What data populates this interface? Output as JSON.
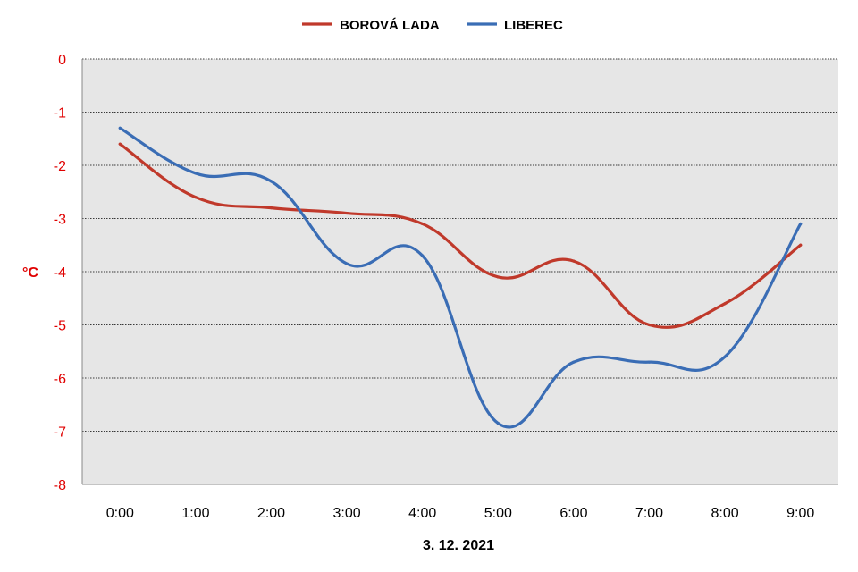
{
  "chart_data": {
    "type": "line",
    "title": "",
    "xlabel": "3. 12. 2021",
    "ylabel": "°C",
    "categories": [
      "0:00",
      "1:00",
      "2:00",
      "3:00",
      "4:00",
      "5:00",
      "6:00",
      "7:00",
      "8:00",
      "9:00"
    ],
    "ylim": [
      -8,
      0
    ],
    "yticks": [
      "0",
      "-1",
      "-2",
      "-3",
      "-4",
      "-5",
      "-6",
      "-7",
      "-8"
    ],
    "grid": "horizontal dashed",
    "legend_position": "top",
    "series": [
      {
        "name": "BOROVÁ LADA",
        "color": "#c0392b",
        "values": [
          -1.6,
          -2.6,
          -2.8,
          -2.9,
          -3.1,
          -4.1,
          -3.8,
          -5.0,
          -4.6,
          -3.5
        ]
      },
      {
        "name": "LIBEREC",
        "color": "#3a6db5",
        "values": [
          -1.3,
          -2.15,
          -2.3,
          -3.85,
          -3.7,
          -6.85,
          -5.7,
          -5.7,
          -5.6,
          -3.1
        ]
      }
    ],
    "colors": {
      "plot_background": "#e6e6e6",
      "grid": "#000000",
      "ytick": "#e00000"
    }
  }
}
